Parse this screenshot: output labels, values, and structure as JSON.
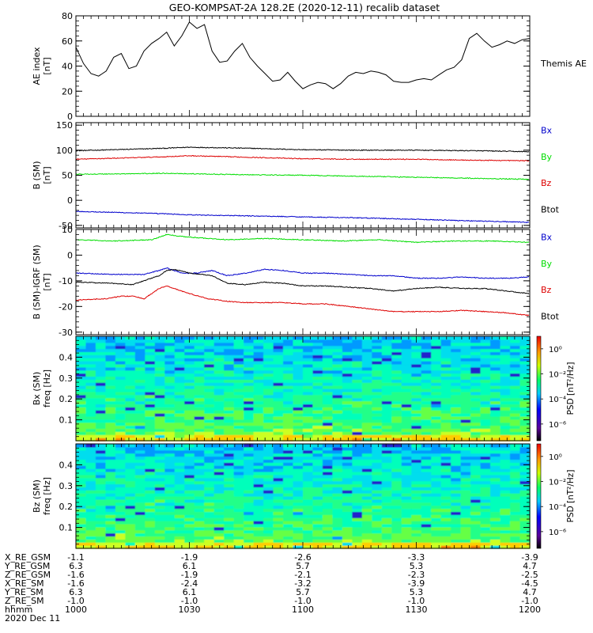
{
  "chart_data": {
    "title": "GEO-KOMPSAT-2A 128.2E (2020-12-11) recalib dataset",
    "panels": [
      {
        "type": "line",
        "ylabel": "AE index",
        "yunit": "[nT]",
        "ylim": [
          0,
          80
        ],
        "yticks": [
          "0",
          "20",
          "40",
          "60",
          "80"
        ],
        "legend": [
          {
            "name": "Themis AE",
            "color": "#000000"
          }
        ],
        "x_minutes": [
          0,
          2,
          4,
          6,
          8,
          10,
          12,
          14,
          16,
          18,
          20,
          22,
          24,
          26,
          28,
          30,
          32,
          34,
          36,
          38,
          40,
          42,
          44,
          46,
          48,
          50,
          52,
          54,
          56,
          58,
          60,
          62,
          64,
          66,
          68,
          70,
          72,
          74,
          76,
          78,
          80,
          82,
          84,
          86,
          88,
          90,
          92,
          94,
          96,
          98,
          100,
          102,
          104,
          106,
          108,
          110,
          112,
          114,
          116,
          118,
          120
        ],
        "values": [
          55,
          42,
          34,
          32,
          36,
          47,
          50,
          38,
          40,
          52,
          58,
          62,
          67,
          56,
          64,
          75,
          70,
          73,
          52,
          43,
          44,
          52,
          58,
          47,
          40,
          34,
          28,
          29,
          35,
          28,
          22,
          25,
          27,
          26,
          22,
          26,
          32,
          35,
          34,
          36,
          35,
          33,
          28,
          27,
          27,
          29,
          30,
          29,
          33,
          37,
          39,
          45,
          62,
          66,
          60,
          55,
          57,
          60,
          58,
          61,
          62
        ]
      },
      {
        "type": "line",
        "ylabel": "B (SM)",
        "yunit": "[nT]",
        "ylim": [
          -55,
          155
        ],
        "yticks": [
          "-50",
          "0",
          "50",
          "100",
          "150"
        ],
        "legend": [
          {
            "name": "Bx",
            "color": "#0000cc"
          },
          {
            "name": "By",
            "color": "#00dd00"
          },
          {
            "name": "Bz",
            "color": "#dd0000"
          },
          {
            "name": "Btot",
            "color": "#000000"
          }
        ],
        "series": [
          {
            "name": "Btot",
            "color": "#000000",
            "x_minutes": [
              0,
              15,
              24,
              30,
              45,
              60,
              75,
              90,
              105,
              120
            ],
            "values": [
              99,
              102,
              104,
              106,
              104,
              101,
              100,
              100,
              99,
              97
            ]
          },
          {
            "name": "Bz",
            "color": "#dd0000",
            "x_minutes": [
              0,
              15,
              24,
              30,
              45,
              60,
              75,
              90,
              105,
              120
            ],
            "values": [
              82,
              85,
              87,
              89,
              86,
              83,
              82,
              82,
              80,
              79
            ]
          },
          {
            "name": "By",
            "color": "#00dd00",
            "x_minutes": [
              0,
              15,
              24,
              30,
              45,
              60,
              75,
              90,
              105,
              120
            ],
            "values": [
              52,
              53,
              54,
              53,
              51,
              50,
              48,
              46,
              44,
              42
            ]
          },
          {
            "name": "Bx",
            "color": "#0000cc",
            "x_minutes": [
              0,
              15,
              24,
              30,
              45,
              60,
              75,
              90,
              105,
              120
            ],
            "values": [
              -22,
              -25,
              -27,
              -29,
              -31,
              -33,
              -35,
              -38,
              -41,
              -44
            ]
          }
        ]
      },
      {
        "type": "line",
        "ylabel": "B (SM)-IGRF (SM)",
        "yunit": "[nT]",
        "ylim": [
          -31,
          10
        ],
        "yticks": [
          "-30",
          "-20",
          "-10",
          "0",
          "10"
        ],
        "legend": [
          {
            "name": "Bx",
            "color": "#0000cc"
          },
          {
            "name": "By",
            "color": "#00dd00"
          },
          {
            "name": "Bz",
            "color": "#dd0000"
          },
          {
            "name": "Btot",
            "color": "#000000"
          }
        ],
        "series": [
          {
            "name": "By",
            "color": "#00dd00",
            "x_minutes": [
              0,
              10,
              20,
              24,
              30,
              40,
              50,
              60,
              70,
              80,
              90,
              100,
              110,
              120
            ],
            "values": [
              6,
              5.5,
              6,
              8,
              7,
              6,
              6.5,
              6,
              5.5,
              6,
              5,
              5.5,
              5.5,
              5
            ]
          },
          {
            "name": "Bx",
            "color": "#0000cc",
            "x_minutes": [
              0,
              10,
              18,
              22,
              24,
              26,
              28,
              32,
              36,
              40,
              45,
              50,
              55,
              60,
              66,
              72,
              78,
              84,
              90,
              96,
              102,
              108,
              114,
              120
            ],
            "values": [
              -7,
              -7.5,
              -7.5,
              -6,
              -5,
              -6,
              -7,
              -7,
              -6,
              -8,
              -7,
              -5.5,
              -6,
              -7,
              -7,
              -7.5,
              -8,
              -8,
              -9,
              -9,
              -8.5,
              -9,
              -9,
              -8.5
            ]
          },
          {
            "name": "Btot",
            "color": "#000000",
            "x_minutes": [
              0,
              10,
              15,
              20,
              22,
              24,
              26,
              30,
              36,
              40,
              45,
              50,
              55,
              60,
              66,
              72,
              78,
              84,
              90,
              96,
              102,
              108,
              114,
              120
            ],
            "values": [
              -10.5,
              -11,
              -11.5,
              -9,
              -8,
              -6,
              -5.5,
              -7,
              -8,
              -11,
              -11.5,
              -10.5,
              -11,
              -12,
              -12,
              -12.5,
              -13,
              -14,
              -13,
              -12.5,
              -13,
              -13,
              -14,
              -15
            ]
          },
          {
            "name": "Bz",
            "color": "#dd0000",
            "x_minutes": [
              0,
              8,
              12,
              15,
              18,
              22,
              24,
              26,
              30,
              35,
              40,
              45,
              50,
              55,
              60,
              66,
              72,
              78,
              84,
              90,
              96,
              102,
              108,
              114,
              120
            ],
            "values": [
              -17.5,
              -17,
              -16,
              -16,
              -17,
              -13,
              -12,
              -13,
              -15,
              -17,
              -18,
              -18.5,
              -18.5,
              -18.5,
              -19,
              -19,
              -20,
              -21,
              -22,
              -22,
              -22,
              -21.5,
              -22,
              -22.5,
              -23.5
            ]
          }
        ]
      },
      {
        "type": "heatmap",
        "ylabel": "Bx (SM)",
        "yunit": "freq [Hz]",
        "ylim": [
          0,
          0.5
        ],
        "yticks": [
          "0.1",
          "0.2",
          "0.3",
          "0.4"
        ],
        "colorbar": {
          "label": "PSD [nT²/Hz]",
          "ticks": [
            "10⁰",
            "10⁻²",
            "10⁻⁴",
            "10⁻⁶"
          ]
        }
      },
      {
        "type": "heatmap",
        "ylabel": "Bz (SM)",
        "yunit": "freq [Hz]",
        "ylim": [
          0,
          0.5
        ],
        "yticks": [
          "0.1",
          "0.2",
          "0.3",
          "0.4"
        ],
        "colorbar": {
          "label": "PSD [nT²/Hz]",
          "ticks": [
            "10⁰",
            "10⁻²",
            "10⁻⁴",
            "10⁻⁶"
          ]
        }
      }
    ],
    "x_axis": {
      "range_minutes": [
        0,
        120
      ],
      "rows": [
        {
          "label": "X_RE_GSM",
          "values": [
            "-1.1",
            "-1.9",
            "-2.6",
            "-3.3",
            "-3.9"
          ]
        },
        {
          "label": "Y_RE_GSM",
          "values": [
            "6.3",
            "6.1",
            "5.7",
            "5.3",
            "4.7"
          ]
        },
        {
          "label": "Z_RE_GSM",
          "values": [
            "-1.6",
            "-1.9",
            "-2.1",
            "-2.3",
            "-2.5"
          ]
        },
        {
          "label": "X_RE_SM",
          "values": [
            "-1.6",
            "-2.4",
            "-3.2",
            "-3.9",
            "-4.5"
          ]
        },
        {
          "label": "Y_RE_SM",
          "values": [
            "6.3",
            "6.1",
            "5.7",
            "5.3",
            "4.7"
          ]
        },
        {
          "label": "Z_RE_SM",
          "values": [
            "-1.0",
            "-1.0",
            "-1.0",
            "-1.0",
            "-1.0"
          ]
        },
        {
          "label": "hhmm",
          "values": [
            "1000",
            "1030",
            "1100",
            "1130",
            "1200"
          ]
        }
      ],
      "date": "2020 Dec 11"
    }
  }
}
